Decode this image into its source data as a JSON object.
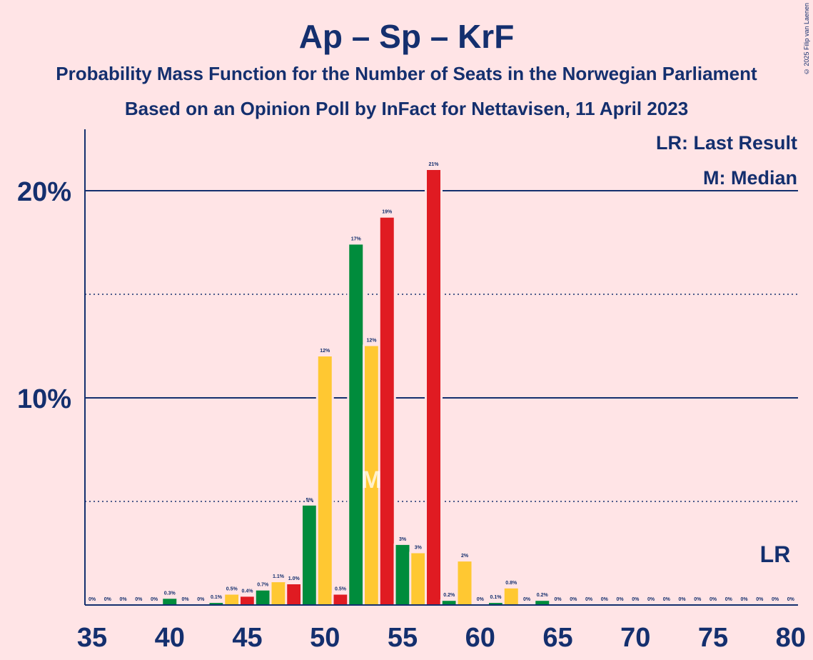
{
  "title": "Ap – Sp – KrF",
  "subtitle_1": "Probability Mass Function for the Number of Seats in the Norwegian Parliament",
  "subtitle_2": "Based on an Opinion Poll by InFact for Nettavisen, 11 April 2023",
  "copyright": "© 2025 Filip van Laenen",
  "legend": {
    "last_result": "LR: Last Result",
    "median": "M: Median"
  },
  "colors": {
    "background": "#ffe4e6",
    "text": "#142f6e",
    "green": "#008c3c",
    "yellow": "#ffc832",
    "red": "#e01b22"
  },
  "chart_data": {
    "type": "bar",
    "x": [
      35,
      36,
      37,
      38,
      39,
      40,
      41,
      42,
      43,
      44,
      45,
      46,
      47,
      48,
      49,
      50,
      51,
      52,
      53,
      54,
      55,
      56,
      57,
      58,
      59,
      60,
      61,
      62,
      63,
      64,
      65,
      66,
      67,
      68,
      69,
      70,
      71,
      72,
      73,
      74,
      75,
      76,
      77,
      78,
      79,
      80
    ],
    "values": [
      0,
      0,
      0,
      0,
      0,
      0.3,
      0,
      0,
      0.1,
      0.5,
      0.4,
      0.7,
      1.1,
      1.0,
      4.8,
      12.0,
      0.5,
      17.4,
      12.5,
      18.7,
      2.9,
      2.5,
      21.0,
      0.2,
      2.1,
      0,
      0.1,
      0.8,
      0,
      0.2,
      0,
      0,
      0,
      0,
      0,
      0,
      0,
      0,
      0,
      0,
      0,
      0,
      0,
      0,
      0,
      0
    ],
    "labels": [
      "0%",
      "0%",
      "0%",
      "0%",
      "0%",
      "0.3%",
      "0%",
      "0%",
      "0.1%",
      "0.5%",
      "0.4%",
      "0.7%",
      "1.1%",
      "1.0%",
      "5%",
      "12%",
      "0.5%",
      "17%",
      "12%",
      "19%",
      "3%",
      "3%",
      "21%",
      "0.2%",
      "2%",
      "0%",
      "0.1%",
      "0.8%",
      "0%",
      "0.2%",
      "0%",
      "0%",
      "0%",
      "0%",
      "0%",
      "0%",
      "0%",
      "0%",
      "0%",
      "0%",
      "0%",
      "0%",
      "0%",
      "0%",
      "0%",
      "0%"
    ],
    "bar_colors": [
      "green",
      "yellow",
      "red",
      "green",
      "yellow",
      "green",
      "yellow",
      "red",
      "green",
      "yellow",
      "red",
      "green",
      "yellow",
      "red",
      "green",
      "yellow",
      "red",
      "green",
      "yellow",
      "red",
      "green",
      "yellow",
      "red",
      "green",
      "yellow",
      "red",
      "green",
      "yellow",
      "red",
      "green",
      "yellow",
      "red",
      "green",
      "yellow",
      "red",
      "green",
      "yellow",
      "red",
      "green",
      "yellow",
      "red",
      "green",
      "yellow",
      "red",
      "green",
      "yellow"
    ],
    "xlim": [
      35,
      80
    ],
    "ylim": [
      0,
      23
    ],
    "x_ticks": [
      "35",
      "40",
      "45",
      "50",
      "55",
      "60",
      "65",
      "70",
      "75",
      "80"
    ],
    "y_ticks": [
      "10%",
      "20%"
    ],
    "y_tick_values": [
      10,
      20
    ],
    "y_dotted_values": [
      5,
      15
    ],
    "median_seat": 53,
    "median_marker": "M",
    "last_result_seat": 79,
    "last_result_marker": "LR",
    "grid": "horizontal"
  }
}
